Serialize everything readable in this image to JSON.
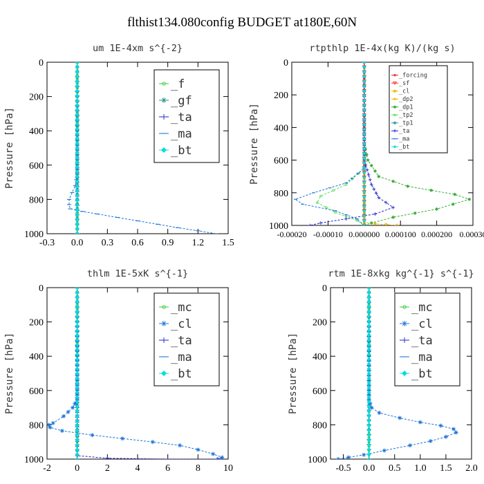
{
  "figure_title": "flthist134.080config  BUDGET at180E,60N",
  "chart_data": [
    {
      "type": "line",
      "title": "um  1E-4xm s^{-2}",
      "ylabel": "Pressure [hPa]",
      "xlim": [
        -0.3,
        1.5
      ],
      "ylim": [
        1000,
        0
      ],
      "xticks": [
        "-0.3",
        "0.0",
        "0.3",
        "0.6",
        "0.9",
        "1.2",
        "1.5"
      ],
      "xtick_values": [
        -0.3,
        0.0,
        0.3,
        0.6,
        0.9,
        1.2,
        1.5
      ],
      "yticks": [
        "0",
        "200",
        "400",
        "600",
        "800",
        "1000"
      ],
      "ytick_values": [
        0,
        200,
        400,
        600,
        800,
        1000
      ],
      "legend_position": "top-right",
      "legend": [
        "_f",
        "_gf",
        "_ta",
        "_ma",
        "_bt"
      ],
      "series": [
        {
          "name": "_f",
          "color": "#33cc33",
          "marker": "circle",
          "points": [
            [
              0,
              0
            ],
            [
              0,
              100
            ],
            [
              0,
              200
            ],
            [
              0,
              300
            ],
            [
              0,
              400
            ],
            [
              0,
              500
            ],
            [
              0,
              600
            ],
            [
              0,
              700
            ],
            [
              0,
              800
            ],
            [
              0,
              900
            ],
            [
              0,
              1000
            ]
          ]
        },
        {
          "name": "_gf",
          "color": "#228b8b",
          "marker": "star",
          "points": [
            [
              0,
              0
            ],
            [
              0,
              200
            ],
            [
              0,
              400
            ],
            [
              0,
              600
            ],
            [
              0,
              800
            ],
            [
              0,
              1000
            ]
          ]
        },
        {
          "name": "_ta",
          "color": "#2222cc",
          "marker": "plus",
          "points": [
            [
              0,
              0
            ],
            [
              0,
              500
            ],
            [
              0,
              700
            ],
            [
              0,
              1000
            ]
          ]
        },
        {
          "name": "_ma",
          "color": "#1a73d9",
          "marker": "dash",
          "points": [
            [
              0,
              0
            ],
            [
              0,
              650
            ],
            [
              -0.02,
              720
            ],
            [
              -0.05,
              760
            ],
            [
              -0.08,
              800
            ],
            [
              -0.08,
              830
            ],
            [
              -0.07,
              855
            ],
            [
              0.05,
              870
            ],
            [
              0.2,
              885
            ],
            [
              0.4,
              905
            ],
            [
              0.6,
              925
            ],
            [
              0.8,
              945
            ],
            [
              1.0,
              965
            ],
            [
              1.2,
              983
            ],
            [
              1.38,
              1000
            ]
          ]
        },
        {
          "name": "_bt",
          "color": "#00dddd",
          "marker": "diamond",
          "points": [
            [
              0,
              0
            ],
            [
              0,
              500
            ],
            [
              0,
              1000
            ]
          ]
        }
      ]
    },
    {
      "type": "line",
      "title": "rtpthlp  1E-4x(kg K)/(kg s)",
      "ylabel": "Pressure [hPa]",
      "xlim": [
        -0.0002,
        0.0003
      ],
      "ylim": [
        1000,
        0
      ],
      "xticks": [
        "-0.00020",
        "-0.00010",
        "0.000000",
        "0.000100",
        "0.000200",
        "0.00030"
      ],
      "xtick_values": [
        -0.0002,
        -0.0001,
        0.0,
        0.0001,
        0.0002,
        0.0003
      ],
      "yticks": [
        "0",
        "200",
        "400",
        "600",
        "800",
        "1000"
      ],
      "ytick_values": [
        0,
        200,
        400,
        600,
        800,
        1000
      ],
      "legend_position": "top-right",
      "legend": [
        "_forcing",
        "_sf",
        "_cl",
        "_dp2",
        "_dp1",
        "_tp2",
        "_tp1",
        "_ta",
        "_ma",
        "_bt"
      ],
      "series": [
        {
          "name": "_forcing",
          "color": "#dd2222",
          "marker": "circle",
          "points": [
            [
              0,
              0
            ],
            [
              0,
              100
            ],
            [
              0,
              200
            ],
            [
              0,
              300
            ],
            [
              0,
              400
            ],
            [
              0,
              500
            ],
            [
              0,
              600
            ],
            [
              0,
              700
            ],
            [
              0,
              800
            ],
            [
              0,
              900
            ],
            [
              0,
              1000
            ]
          ]
        },
        {
          "name": "_sf",
          "color": "#ff3333",
          "marker": "tri",
          "points": [
            [
              0,
              0
            ],
            [
              0,
              500
            ],
            [
              0,
              1000
            ]
          ]
        },
        {
          "name": "_cl",
          "color": "#e6b800",
          "marker": "star",
          "points": [
            [
              0,
              0
            ],
            [
              0,
              980
            ],
            [
              3e-05,
              990
            ],
            [
              6e-05,
              995
            ],
            [
              9e-05,
              1000
            ]
          ]
        },
        {
          "name": "_dp2",
          "color": "#e6b800",
          "marker": "circle",
          "points": [
            [
              0,
              0
            ],
            [
              0,
              1000
            ]
          ]
        },
        {
          "name": "_dp1",
          "color": "#33aa33",
          "marker": "star",
          "points": [
            [
              0,
              0
            ],
            [
              0,
              500
            ],
            [
              1e-05,
              600
            ],
            [
              4e-05,
              700
            ],
            [
              0.00012,
              760
            ],
            [
              0.00025,
              810
            ],
            [
              0.00029,
              840
            ],
            [
              0.0002,
              900
            ],
            [
              8e-05,
              950
            ],
            [
              2e-05,
              985
            ],
            [
              0,
              1000
            ]
          ]
        },
        {
          "name": "_tp2",
          "color": "#55dd55",
          "marker": "circle",
          "points": [
            [
              0,
              0
            ],
            [
              0,
              650
            ],
            [
              -5e-05,
              750
            ],
            [
              -0.00012,
              820
            ],
            [
              -0.00013,
              860
            ],
            [
              -8e-05,
              920
            ],
            [
              -2e-05,
              970
            ],
            [
              0,
              1000
            ]
          ]
        },
        {
          "name": "_tp1",
          "color": "#339999",
          "marker": "star",
          "points": [
            [
              0,
              0
            ],
            [
              0,
              1000
            ]
          ]
        },
        {
          "name": "_ta",
          "color": "#2222cc",
          "marker": "plus",
          "points": [
            [
              0,
              0
            ],
            [
              0,
              600
            ],
            [
              2e-05,
              750
            ],
            [
              4e-05,
              830
            ],
            [
              8e-05,
              890
            ],
            [
              3e-05,
              930
            ],
            [
              -5e-05,
              960
            ],
            [
              -0.00012,
              985
            ],
            [
              -0.00015,
              1000
            ]
          ]
        },
        {
          "name": "_ma",
          "color": "#1a73d9",
          "marker": "dash",
          "points": [
            [
              0,
              0
            ],
            [
              0,
              650
            ],
            [
              -5e-05,
              740
            ],
            [
              -0.00014,
              800
            ],
            [
              -0.00019,
              840
            ],
            [
              -0.00017,
              870
            ],
            [
              -8e-05,
              910
            ],
            [
              -2e-05,
              960
            ],
            [
              0,
              1000
            ]
          ]
        },
        {
          "name": "_bt",
          "color": "#00dddd",
          "marker": "diamond",
          "points": [
            [
              0,
              0
            ],
            [
              0,
              500
            ],
            [
              0,
              1000
            ]
          ]
        }
      ]
    },
    {
      "type": "line",
      "title": "thlm  1E-5xK s^{-1}",
      "ylabel": "Pressure [hPa]",
      "xlim": [
        -2,
        10
      ],
      "ylim": [
        1000,
        0
      ],
      "xticks": [
        "-2",
        "0",
        "2",
        "4",
        "6",
        "8",
        "10"
      ],
      "xtick_values": [
        -2,
        0,
        2,
        4,
        6,
        8,
        10
      ],
      "yticks": [
        "0",
        "200",
        "400",
        "600",
        "800",
        "1000"
      ],
      "ytick_values": [
        0,
        200,
        400,
        600,
        800,
        1000
      ],
      "legend_position": "top-right",
      "legend": [
        "_mc",
        "_cl",
        "_ta",
        "_ma",
        "_bt"
      ],
      "series": [
        {
          "name": "_mc",
          "color": "#33cc33",
          "marker": "circle",
          "points": [
            [
              0,
              0
            ],
            [
              0,
              100
            ],
            [
              0,
              200
            ],
            [
              0,
              300
            ],
            [
              0,
              400
            ],
            [
              0,
              500
            ],
            [
              0,
              600
            ],
            [
              0,
              700
            ],
            [
              0,
              800
            ],
            [
              0,
              900
            ],
            [
              0,
              1000
            ]
          ]
        },
        {
          "name": "_cl",
          "color": "#1a73d9",
          "marker": "star",
          "points": [
            [
              0,
              0
            ],
            [
              0,
              650
            ],
            [
              -0.3,
              700
            ],
            [
              -0.9,
              750
            ],
            [
              -1.6,
              790
            ],
            [
              -1.9,
              800
            ],
            [
              -1.8,
              815
            ],
            [
              -1.0,
              835
            ],
            [
              1.0,
              860
            ],
            [
              3.0,
              880
            ],
            [
              5.0,
              900
            ],
            [
              6.8,
              920
            ],
            [
              8.0,
              945
            ],
            [
              9.0,
              970
            ],
            [
              9.6,
              990
            ],
            [
              9.3,
              1000
            ]
          ]
        },
        {
          "name": "_ta",
          "color": "#2222cc",
          "marker": "plus",
          "points": [
            [
              0,
              0
            ],
            [
              0,
              980
            ],
            [
              2,
              995
            ],
            [
              6,
              1000
            ],
            [
              9.5,
              1000
            ]
          ]
        },
        {
          "name": "_ma",
          "color": "#1a73d9",
          "marker": "dash",
          "points": [
            [
              0,
              0
            ],
            [
              0,
              1000
            ]
          ]
        },
        {
          "name": "_bt",
          "color": "#00dddd",
          "marker": "diamond",
          "points": [
            [
              0,
              0
            ],
            [
              0,
              500
            ],
            [
              0,
              1000
            ]
          ]
        }
      ]
    },
    {
      "type": "line",
      "title": "rtm  1E-8xkg kg^{-1} s^{-1}",
      "ylabel": "Pressure [hPa]",
      "xlim": [
        -0.75,
        2.0
      ],
      "ylim": [
        1000,
        0
      ],
      "xticks": [
        "-0.5",
        "0.0",
        "0.5",
        "1.0",
        "1.5",
        "2.0"
      ],
      "xtick_values": [
        -0.5,
        0.0,
        0.5,
        1.0,
        1.5,
        2.0
      ],
      "yticks": [
        "0",
        "200",
        "400",
        "600",
        "800",
        "1000"
      ],
      "ytick_values": [
        0,
        200,
        400,
        600,
        800,
        1000
      ],
      "legend_position": "top-right",
      "legend": [
        "_mc",
        "_cl",
        "_ta",
        "_ma",
        "_bt"
      ],
      "series": [
        {
          "name": "_mc",
          "color": "#33cc33",
          "marker": "circle",
          "points": [
            [
              0,
              0
            ],
            [
              0,
              100
            ],
            [
              0,
              200
            ],
            [
              0,
              300
            ],
            [
              0,
              400
            ],
            [
              0,
              500
            ],
            [
              0,
              600
            ],
            [
              0,
              700
            ],
            [
              0,
              800
            ],
            [
              0,
              900
            ],
            [
              0,
              1000
            ]
          ]
        },
        {
          "name": "_cl",
          "color": "#1a73d9",
          "marker": "star",
          "points": [
            [
              0,
              0
            ],
            [
              0,
              650
            ],
            [
              0.05,
              700
            ],
            [
              0.2,
              730
            ],
            [
              0.6,
              760
            ],
            [
              1.0,
              785
            ],
            [
              1.4,
              805
            ],
            [
              1.65,
              825
            ],
            [
              1.7,
              845
            ],
            [
              1.5,
              870
            ],
            [
              1.2,
              895
            ],
            [
              0.8,
              920
            ],
            [
              0.3,
              950
            ],
            [
              -0.1,
              975
            ],
            [
              -0.4,
              990
            ],
            [
              -0.6,
              1000
            ]
          ]
        },
        {
          "name": "_ta",
          "color": "#2222cc",
          "marker": "plus",
          "points": [
            [
              0,
              0
            ],
            [
              0,
              1000
            ]
          ]
        },
        {
          "name": "_ma",
          "color": "#1a73d9",
          "marker": "dash",
          "points": [
            [
              0,
              0
            ],
            [
              0,
              1000
            ]
          ]
        },
        {
          "name": "_bt",
          "color": "#00dddd",
          "marker": "diamond",
          "points": [
            [
              0,
              0
            ],
            [
              0,
              500
            ],
            [
              0,
              1000
            ]
          ]
        }
      ]
    }
  ]
}
